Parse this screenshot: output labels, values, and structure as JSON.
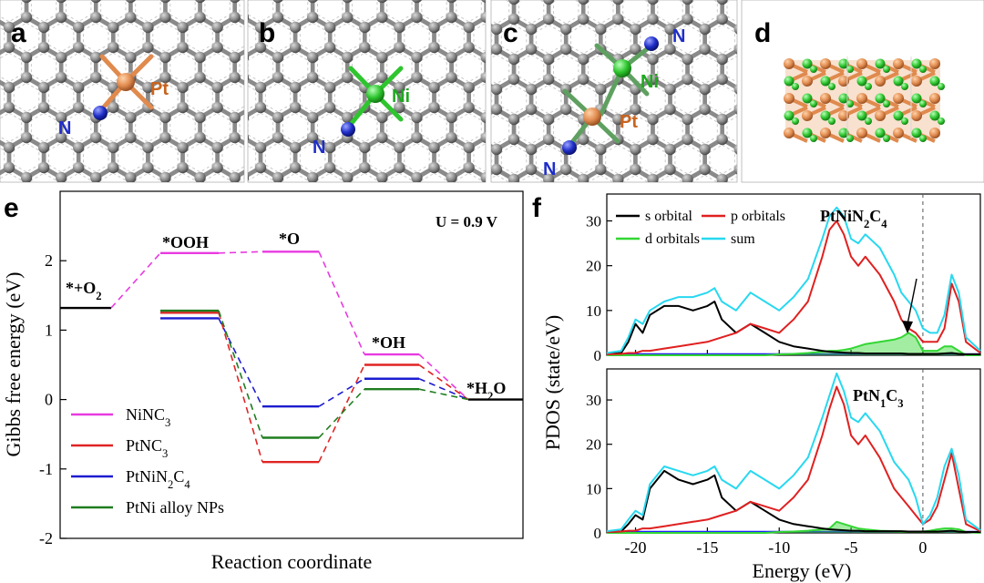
{
  "panels": {
    "a": {
      "letter": "a",
      "atoms": [
        "Pt",
        "N"
      ]
    },
    "b": {
      "letter": "b",
      "atoms": [
        "Ni",
        "N"
      ]
    },
    "c": {
      "letter": "c",
      "atoms": [
        "N",
        "Ni",
        "Pt",
        "N"
      ]
    },
    "d": {
      "letter": "d"
    },
    "e": {
      "letter": "e"
    },
    "f": {
      "letter": "f"
    }
  },
  "colors": {
    "carbon": "#8a8a8a",
    "pt": "#e08a4e",
    "ni": "#2ec52e",
    "n": "#1f2ec8",
    "NiNC3": "#e83ae0",
    "PtNC3": "#e02424",
    "PtNiN2C4": "#1c1cd0",
    "PtNiAlloy": "#1f7d1f",
    "s": "#000000",
    "p": "#e02020",
    "d": "#33d633",
    "sum": "#27d8f0"
  },
  "chart_data": [
    {
      "type": "line",
      "id": "gibbs",
      "title": "U = 0.9 V",
      "ylabel": "Gibbs free energy (eV)",
      "xlabel": "Reaction coordinate",
      "ylim": [
        -2,
        3
      ],
      "yticks": [
        "-2",
        "-1",
        "0",
        "1",
        "2"
      ],
      "steps": [
        "*+O2",
        "*OOH",
        "*O",
        "*OH",
        "*H2O"
      ],
      "step_labels": {
        "O2": {
          "pre": "*+O",
          "sub": "2"
        },
        "OOH": "*OOH",
        "O": "*O",
        "OH": "*OH",
        "H2O": {
          "pre": "*H",
          "sub": "2",
          "post": "O"
        }
      },
      "series": [
        {
          "name": "NiNC3",
          "label_pre": "NiNC",
          "label_sub": "3",
          "color": "#e83ae0",
          "values": [
            1.32,
            2.11,
            2.13,
            0.65,
            0.0
          ]
        },
        {
          "name": "PtNC3",
          "label_pre": "PtNC",
          "label_sub": "3",
          "color": "#e02424",
          "values": [
            1.32,
            1.25,
            -0.9,
            0.5,
            0.0
          ]
        },
        {
          "name": "PtNiN2C4",
          "label_pre": "PtNiN",
          "label_sub": "2",
          "label_mid": "C",
          "label_sub2": "4",
          "color": "#1c1cd0",
          "values": [
            1.32,
            1.17,
            -0.1,
            0.3,
            0.0
          ]
        },
        {
          "name": "PtNi alloy NPs",
          "label_pre": "PtNi alloy NPs",
          "color": "#1f7d1f",
          "values": [
            1.32,
            1.28,
            -0.55,
            0.15,
            0.0
          ]
        }
      ]
    },
    {
      "type": "line",
      "id": "pdos_top",
      "title": {
        "pre": "PtNiN",
        "sub": "2",
        "mid": "C",
        "sub2": "4"
      },
      "xlim": [
        -22,
        4
      ],
      "ylim": [
        0,
        36
      ],
      "yticks": [
        "0",
        "10",
        "20",
        "30"
      ],
      "legend": [
        "s orbital",
        "p orbitals",
        "d orbitals",
        "sum"
      ],
      "x": [
        -22,
        -21,
        -20.5,
        -20,
        -19.5,
        -19,
        -18,
        -17,
        -16,
        -15,
        -14.5,
        -14,
        -13,
        -12,
        -11,
        -10,
        -9,
        -8,
        -7,
        -6.5,
        -6,
        -5.5,
        -5,
        -4.5,
        -4,
        -3,
        -2,
        -1.5,
        -1,
        -0.5,
        0,
        0.5,
        1,
        1.5,
        2,
        2.5,
        3,
        4
      ],
      "series": [
        {
          "name": "s orbital",
          "values": [
            0.3,
            0.5,
            3,
            7,
            5,
            9,
            11,
            11,
            10,
            11,
            12,
            8,
            5,
            7,
            5,
            3,
            2,
            1.5,
            1,
            0.8,
            0.7,
            0.6,
            0.5,
            0.5,
            0.4,
            0.4,
            0.4,
            0.4,
            0.3,
            0.3,
            0.3,
            0.3,
            0.3,
            0.4,
            0.5,
            0.3,
            0.2,
            0.2
          ]
        },
        {
          "name": "p orbitals",
          "values": [
            0.2,
            0.3,
            0.5,
            0.5,
            1,
            1,
            1.5,
            2,
            2.5,
            3,
            3.5,
            4,
            5,
            7,
            6,
            5,
            8,
            12,
            22,
            28,
            30,
            27,
            22,
            20,
            22,
            18,
            12,
            8,
            6,
            5,
            3,
            3,
            3,
            6,
            16,
            12,
            3,
            0.5
          ]
        },
        {
          "name": "d orbitals",
          "values": [
            0,
            0,
            0,
            0,
            0,
            0,
            0,
            0,
            0,
            0,
            0,
            0,
            0,
            0,
            0,
            0.2,
            0.3,
            0.5,
            0.8,
            1,
            1,
            1.2,
            1.5,
            2,
            2.5,
            3,
            3.5,
            4,
            5,
            4,
            1,
            1,
            1,
            2,
            2,
            1,
            0,
            0
          ]
        },
        {
          "name": "sum",
          "values": [
            0.5,
            1,
            4,
            8,
            7,
            10,
            12,
            13,
            13,
            14,
            15,
            12,
            10,
            14,
            12,
            10,
            13,
            17,
            26,
            31,
            33,
            31,
            26,
            25,
            27,
            24,
            18,
            14,
            12,
            10,
            6,
            5,
            5,
            9,
            18,
            14,
            4,
            1
          ]
        }
      ]
    },
    {
      "type": "line",
      "id": "pdos_bottom",
      "title": {
        "pre": "PtN",
        "sub": "1",
        "mid": "C",
        "sub2": "3"
      },
      "xlabel": "Energy (eV)",
      "ylabel": "PDOS (state/eV)",
      "xlim": [
        -22,
        4
      ],
      "ylim": [
        0,
        37
      ],
      "yticks": [
        "0",
        "10",
        "20",
        "30"
      ],
      "xticks": [
        "-20",
        "-15",
        "-10",
        "-5",
        "0"
      ],
      "x": [
        -22,
        -21,
        -20.5,
        -20,
        -19.5,
        -19,
        -18,
        -17,
        -16,
        -15,
        -14.5,
        -14,
        -13,
        -12,
        -11,
        -10,
        -9,
        -8,
        -7,
        -6.5,
        -6,
        -5.5,
        -5,
        -4.5,
        -4,
        -3,
        -2,
        -1.5,
        -1,
        -0.5,
        0,
        0.5,
        1,
        1.5,
        2,
        2.5,
        3,
        4
      ],
      "series": [
        {
          "name": "s orbital",
          "values": [
            0.2,
            0.3,
            2,
            4,
            3,
            10,
            14,
            12,
            11,
            12,
            13,
            8,
            5,
            7,
            5,
            3,
            2,
            1.5,
            1,
            0.8,
            0.7,
            0.6,
            0.5,
            0.5,
            0.4,
            0.4,
            0.4,
            0.4,
            0.3,
            0.3,
            0.3,
            0.3,
            0.3,
            0.4,
            0.5,
            0.3,
            0.2,
            0.2
          ]
        },
        {
          "name": "p orbitals",
          "values": [
            0.2,
            0.3,
            0.5,
            0.5,
            1,
            1,
            1.5,
            2,
            2.5,
            3,
            3.5,
            4,
            5,
            7,
            6,
            5,
            8,
            12,
            22,
            28,
            33,
            29,
            22,
            20,
            22,
            17,
            10,
            8,
            6,
            4,
            2,
            3,
            6,
            12,
            18,
            10,
            2,
            0.4
          ]
        },
        {
          "name": "d orbitals",
          "values": [
            0,
            0,
            0,
            0,
            0,
            0,
            0,
            0,
            0,
            0,
            0,
            0,
            0,
            0,
            0,
            0.2,
            0.3,
            0.5,
            0.8,
            1,
            2.5,
            2,
            1.5,
            1,
            0.8,
            0.5,
            0.4,
            0.3,
            0.3,
            0.3,
            0.3,
            0.5,
            0.8,
            1,
            1,
            0.8,
            0.2,
            0
          ]
        },
        {
          "name": "sum",
          "values": [
            0.4,
            0.8,
            3,
            5,
            4,
            11,
            15,
            14,
            13,
            14,
            15,
            12,
            10,
            14,
            12,
            10,
            13,
            17,
            26,
            31,
            36,
            32,
            26,
            25,
            27,
            23,
            16,
            14,
            12,
            8,
            2,
            4,
            8,
            15,
            19,
            13,
            3,
            0.6
          ]
        }
      ]
    }
  ]
}
